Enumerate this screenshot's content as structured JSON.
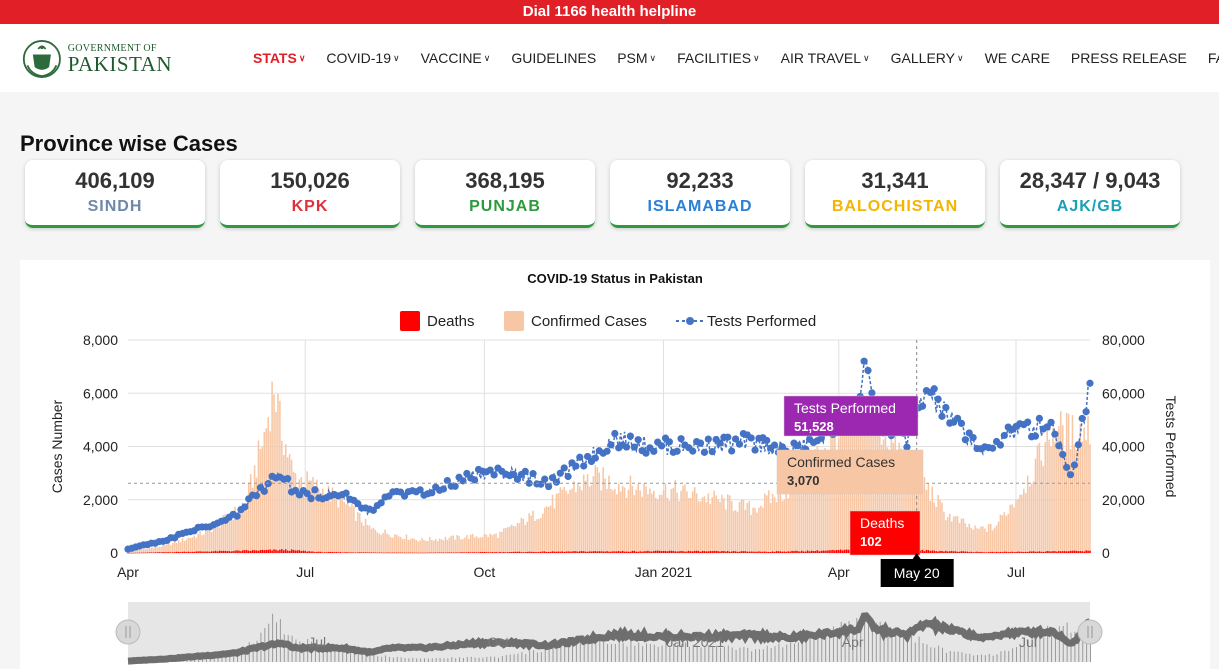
{
  "topbar": {
    "text": "Dial 1166 health helpline"
  },
  "logo": {
    "line1": "GOVERNMENT OF",
    "line2": "PAKISTAN"
  },
  "nav": [
    {
      "label": "STATS",
      "dropdown": true,
      "active": true
    },
    {
      "label": "COVID-19",
      "dropdown": true
    },
    {
      "label": "VACCINE",
      "dropdown": true
    },
    {
      "label": "GUIDELINES",
      "dropdown": false
    },
    {
      "label": "PSM",
      "dropdown": true
    },
    {
      "label": "FACILITIES",
      "dropdown": true
    },
    {
      "label": "AIR TRAVEL",
      "dropdown": true
    },
    {
      "label": "GALLERY",
      "dropdown": true
    },
    {
      "label": "WE CARE",
      "dropdown": false
    },
    {
      "label": "PRESS RELEASE",
      "dropdown": false
    },
    {
      "label": "FAQ",
      "dropdown": false
    }
  ],
  "section_title": "Province wise Cases",
  "provinces": [
    {
      "value": "406,109",
      "name": "SINDH",
      "color": "#6d88a8"
    },
    {
      "value": "150,026",
      "name": "KPK",
      "color": "#e0303a"
    },
    {
      "value": "368,195",
      "name": "PUNJAB",
      "color": "#2e9a3e"
    },
    {
      "value": "92,233",
      "name": "ISLAMABAD",
      "color": "#2a7fd6"
    },
    {
      "value": "31,341",
      "name": "BALOCHISTAN",
      "color": "#f5b400"
    },
    {
      "value": "28,347 / 9,043",
      "name": "AJK/GB",
      "color": "#1aa0b8"
    }
  ],
  "chart_data": {
    "type": "bar",
    "title": "COVID-19 Status in Pakistan",
    "ylabel": "Cases Number",
    "y2label": "Tests Performed",
    "ylim": [
      0,
      8000
    ],
    "y2lim": [
      0,
      80000
    ],
    "yticks": [
      "0",
      "2,000",
      "4,000",
      "6,000",
      "8,000"
    ],
    "y2ticks": [
      "0",
      "20,000",
      "40,000",
      "60,000",
      "80,000"
    ],
    "xticks": [
      "Apr",
      "Jul",
      "Oct",
      "Jan 2021",
      "Apr",
      "Jul"
    ],
    "legend": [
      {
        "name": "Deaths",
        "color": "#ff0000"
      },
      {
        "name": "Confirmed Cases",
        "color": "#f7c6a5"
      },
      {
        "name": "Tests Performed",
        "color": "#4472c4"
      }
    ],
    "legend_position": "top-center",
    "series": [
      {
        "name": "Confirmed Cases",
        "type": "bar",
        "axis": "left",
        "keypoints": [
          [
            0,
            50
          ],
          [
            20,
            300
          ],
          [
            40,
            800
          ],
          [
            60,
            1800
          ],
          [
            70,
            4500
          ],
          [
            75,
            6500
          ],
          [
            78,
            5000
          ],
          [
            85,
            3000
          ],
          [
            95,
            2600
          ],
          [
            110,
            2000
          ],
          [
            125,
            900
          ],
          [
            150,
            500
          ],
          [
            170,
            600
          ],
          [
            190,
            700
          ],
          [
            210,
            1500
          ],
          [
            230,
            2600
          ],
          [
            240,
            2900
          ],
          [
            260,
            2500
          ],
          [
            280,
            2400
          ],
          [
            300,
            2100
          ],
          [
            320,
            1700
          ],
          [
            340,
            2500
          ],
          [
            360,
            4300
          ],
          [
            380,
            5500
          ],
          [
            392,
            4300
          ],
          [
            405,
            3070
          ],
          [
            420,
            1500
          ],
          [
            435,
            900
          ],
          [
            445,
            1000
          ],
          [
            455,
            2000
          ],
          [
            465,
            3200
          ],
          [
            475,
            4800
          ],
          [
            485,
            4600
          ],
          [
            494,
            4800
          ]
        ]
      },
      {
        "name": "Deaths",
        "type": "bar",
        "axis": "left",
        "keypoints": [
          [
            0,
            2
          ],
          [
            70,
            100
          ],
          [
            80,
            120
          ],
          [
            100,
            30
          ],
          [
            150,
            10
          ],
          [
            240,
            60
          ],
          [
            280,
            70
          ],
          [
            330,
            50
          ],
          [
            380,
            120
          ],
          [
            405,
            102
          ],
          [
            440,
            30
          ],
          [
            494,
            80
          ]
        ]
      },
      {
        "name": "Tests Performed",
        "type": "line",
        "axis": "right",
        "keypoints": [
          [
            0,
            1500
          ],
          [
            20,
            5000
          ],
          [
            40,
            10000
          ],
          [
            55,
            14000
          ],
          [
            70,
            25000
          ],
          [
            80,
            30000
          ],
          [
            85,
            22000
          ],
          [
            110,
            22000
          ],
          [
            125,
            15000
          ],
          [
            135,
            22000
          ],
          [
            150,
            22000
          ],
          [
            160,
            24000
          ],
          [
            180,
            30000
          ],
          [
            200,
            30000
          ],
          [
            215,
            26000
          ],
          [
            235,
            35000
          ],
          [
            250,
            43000
          ],
          [
            270,
            40000
          ],
          [
            300,
            40000
          ],
          [
            320,
            42000
          ],
          [
            340,
            38000
          ],
          [
            360,
            45000
          ],
          [
            375,
            52000
          ],
          [
            378,
            70000
          ],
          [
            385,
            50000
          ],
          [
            400,
            43000
          ],
          [
            405,
            51528
          ],
          [
            410,
            61000
          ],
          [
            420,
            52000
          ],
          [
            430,
            45000
          ],
          [
            440,
            37000
          ],
          [
            450,
            45000
          ],
          [
            465,
            47000
          ],
          [
            475,
            48000
          ],
          [
            485,
            28000
          ],
          [
            494,
            65000
          ]
        ]
      }
    ],
    "tooltips": [
      {
        "title": "Tests Performed",
        "value": "51,528"
      },
      {
        "title": "Confirmed Cases",
        "value": "3,070"
      },
      {
        "title": "Deaths",
        "value": "102"
      }
    ],
    "crosshair_label": "May 20",
    "navigator_ticks": [
      "Jul",
      "Oct",
      "Jan 2021",
      "Apr",
      "Jul"
    ]
  }
}
